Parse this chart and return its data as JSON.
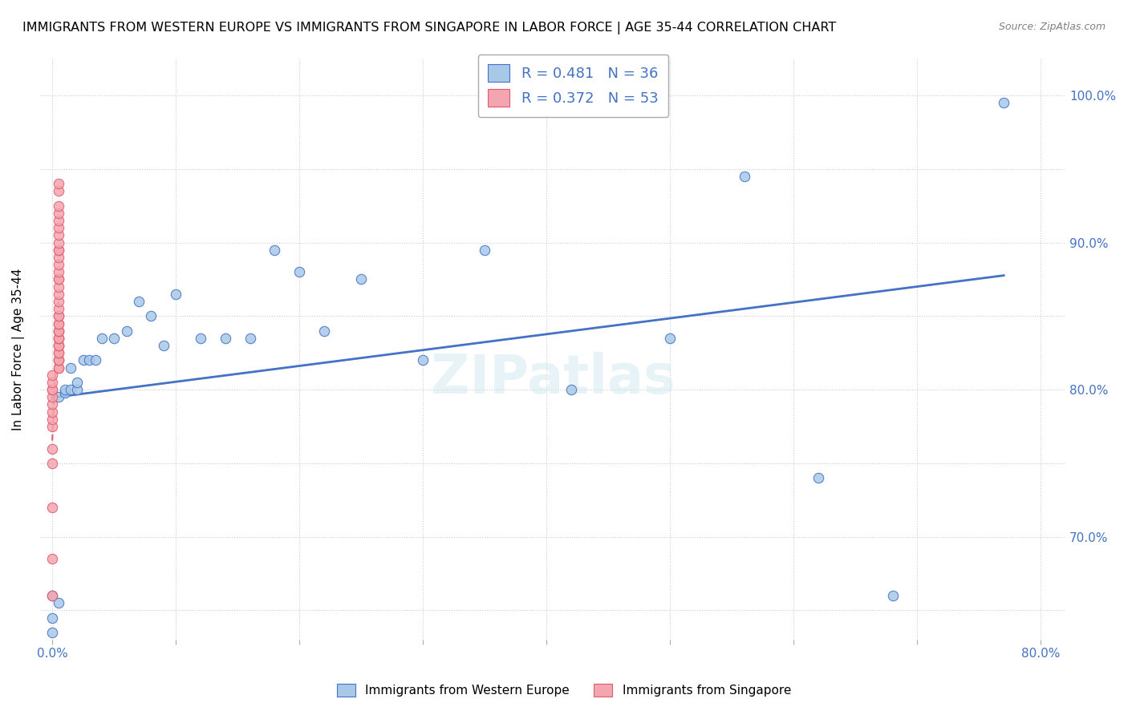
{
  "title": "IMMIGRANTS FROM WESTERN EUROPE VS IMMIGRANTS FROM SINGAPORE IN LABOR FORCE | AGE 35-44 CORRELATION CHART",
  "source": "Source: ZipAtlas.com",
  "xlabel": "",
  "ylabel": "In Labor Force | Age 35-44",
  "xlim": [
    0.0,
    0.8
  ],
  "ylim": [
    0.63,
    1.02
  ],
  "x_ticks": [
    0.0,
    0.1,
    0.2,
    0.3,
    0.4,
    0.5,
    0.6,
    0.7,
    0.8
  ],
  "x_tick_labels": [
    "0.0%",
    "",
    "",
    "",
    "",
    "",
    "",
    "",
    "80.0%"
  ],
  "y_ticks": [
    0.65,
    0.7,
    0.75,
    0.8,
    0.85,
    0.9,
    0.95,
    1.0
  ],
  "y_tick_labels": [
    "",
    "70.0%",
    "",
    "80.0%",
    "",
    "90.0%",
    "",
    "100.0%"
  ],
  "blue_color": "#a8c8e8",
  "blue_line_color": "#4472c4",
  "pink_color": "#f4a6b0",
  "pink_line_color": "#e05a6e",
  "blue_R": 0.481,
  "blue_N": 36,
  "pink_R": 0.372,
  "pink_N": 53,
  "watermark": "ZIPatlas",
  "blue_scatter_x": [
    0.0,
    0.0,
    0.0,
    0.005,
    0.005,
    0.01,
    0.01,
    0.015,
    0.015,
    0.02,
    0.02,
    0.025,
    0.03,
    0.035,
    0.04,
    0.05,
    0.06,
    0.07,
    0.08,
    0.09,
    0.1,
    0.12,
    0.14,
    0.16,
    0.18,
    0.2,
    0.22,
    0.25,
    0.3,
    0.35,
    0.42,
    0.5,
    0.56,
    0.62,
    0.68,
    0.77
  ],
  "blue_scatter_y": [
    0.635,
    0.645,
    0.66,
    0.655,
    0.795,
    0.798,
    0.8,
    0.8,
    0.815,
    0.8,
    0.805,
    0.82,
    0.82,
    0.82,
    0.835,
    0.835,
    0.84,
    0.86,
    0.85,
    0.83,
    0.865,
    0.835,
    0.835,
    0.835,
    0.895,
    0.88,
    0.84,
    0.875,
    0.82,
    0.895,
    0.8,
    0.835,
    0.945,
    0.74,
    0.66,
    0.995
  ],
  "pink_scatter_x": [
    0.0,
    0.0,
    0.0,
    0.0,
    0.0,
    0.0,
    0.0,
    0.0,
    0.0,
    0.0,
    0.0,
    0.0,
    0.0,
    0.0,
    0.005,
    0.005,
    0.005,
    0.005,
    0.005,
    0.005,
    0.005,
    0.005,
    0.005,
    0.005,
    0.005,
    0.005,
    0.005,
    0.005,
    0.005,
    0.005,
    0.005,
    0.005,
    0.005,
    0.005,
    0.005,
    0.005,
    0.005,
    0.005,
    0.005,
    0.005,
    0.005,
    0.005,
    0.005,
    0.005,
    0.005,
    0.005,
    0.005,
    0.005,
    0.005,
    0.005,
    0.005,
    0.005,
    0.005
  ],
  "pink_scatter_y": [
    0.66,
    0.685,
    0.72,
    0.75,
    0.76,
    0.775,
    0.78,
    0.785,
    0.79,
    0.795,
    0.8,
    0.8,
    0.805,
    0.81,
    0.815,
    0.815,
    0.82,
    0.82,
    0.82,
    0.825,
    0.825,
    0.83,
    0.83,
    0.83,
    0.835,
    0.835,
    0.835,
    0.84,
    0.84,
    0.84,
    0.845,
    0.845,
    0.85,
    0.85,
    0.855,
    0.86,
    0.865,
    0.87,
    0.875,
    0.875,
    0.88,
    0.885,
    0.89,
    0.895,
    0.895,
    0.9,
    0.905,
    0.91,
    0.915,
    0.92,
    0.925,
    0.935,
    0.94
  ]
}
